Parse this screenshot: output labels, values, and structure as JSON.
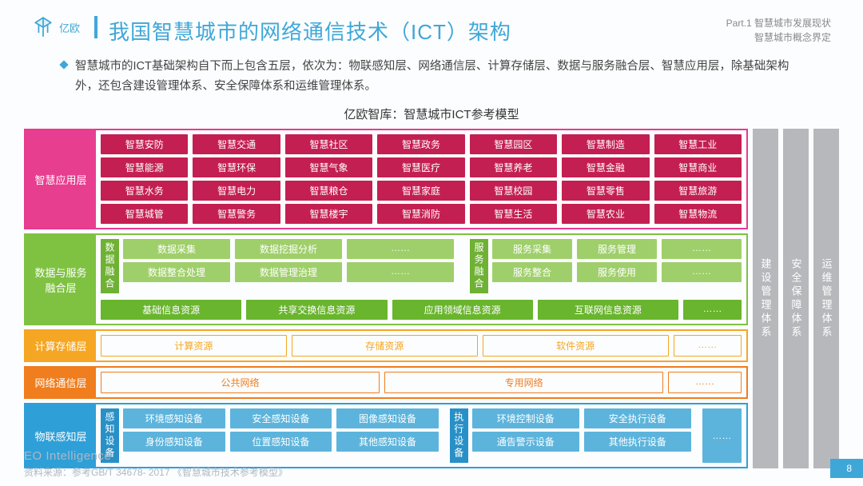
{
  "header": {
    "logo_text": "亿欧",
    "title": "我国智慧城市的网络通信技术（ICT）架构",
    "part_line1": "Part.1 智慧城市发展现状",
    "part_line2": "智慧城市概念界定"
  },
  "description": "智慧城市的ICT基础架构自下而上包含五层，依次为：物联感知层、网络通信层、计算存储层、数据与服务融合层、智慧应用层，除基础架构外，还包含建设管理体系、安全保障体系和运维管理体系。",
  "chart_title": "亿欧智库：智慧城市ICT参考模型",
  "colors": {
    "brand": "#3fa7d8",
    "L1_border": "#e83a8e",
    "L1_label_bg": "#e83e90",
    "L1_cell": "#c41f52",
    "L2_border": "#7fc242",
    "L2_label_bg": "#7fc242",
    "L2_vlabel": "#6fb134",
    "L2_top": "#9fcf6a",
    "L2_bottom": "#69b52e",
    "L3_border": "#f5a623",
    "L3_label_bg": "#f5a623",
    "L3_cell": "#f5a623",
    "L4_border": "#f07d1e",
    "L4_label_bg": "#f07d1e",
    "L4_cell": "#f07d1e",
    "L5_border": "#2f9fd8",
    "L5_label_bg": "#2f9fd8",
    "L5_vlabel": "#2890c7",
    "L5_cell": "#5cb4dc",
    "side_bg": "#b6b8bc"
  },
  "layer1": {
    "label": "智慧应用层",
    "label_width": 88,
    "rows": [
      [
        "智慧安防",
        "智慧交通",
        "智慧社区",
        "智慧政务",
        "智慧园区",
        "智慧制造",
        "智慧工业"
      ],
      [
        "智慧能源",
        "智慧环保",
        "智慧气象",
        "智慧医疗",
        "智慧养老",
        "智慧金融",
        "智慧商业"
      ],
      [
        "智慧水务",
        "智慧电力",
        "智慧粮仓",
        "智慧家庭",
        "智慧校园",
        "智慧零售",
        "智慧旅游"
      ],
      [
        "智慧城管",
        "智慧警务",
        "智慧楼宇",
        "智慧消防",
        "智慧生活",
        "智慧农业",
        "智慧物流"
      ]
    ]
  },
  "layer2": {
    "label": "数据与服务\n融合层",
    "label_width": 88,
    "data_block": {
      "vlabel": "数据融合",
      "rows": [
        [
          "数据采集",
          "数据挖掘分析",
          "……"
        ],
        [
          "数据整合处理",
          "数据管理治理",
          "……"
        ]
      ]
    },
    "service_block": {
      "vlabel": "服务融合",
      "rows": [
        [
          "服务采集",
          "服务管理",
          "……"
        ],
        [
          "服务整合",
          "服务使用",
          "……"
        ]
      ]
    },
    "bottom_row": [
      "基础信息资源",
      "共享交换信息资源",
      "应用领域信息资源",
      "互联网信息资源",
      "……"
    ]
  },
  "layer3": {
    "label": "计算存储层",
    "label_width": 88,
    "row": [
      "计算资源",
      "存储资源",
      "软件资源",
      "……"
    ]
  },
  "layer4": {
    "label": "网络通信层",
    "label_width": 88,
    "row": [
      "公共网络",
      "专用网络",
      "……"
    ]
  },
  "layer5": {
    "label": "物联感知层",
    "label_width": 88,
    "sense_block": {
      "vlabel": "感知设备",
      "rows": [
        [
          "环境感知设备",
          "安全感知设备",
          "图像感知设备"
        ],
        [
          "身份感知设备",
          "位置感知设备",
          "其他感知设备"
        ]
      ]
    },
    "exec_block": {
      "vlabel": "执行设备",
      "rows": [
        [
          "环境控制设备",
          "安全执行设备"
        ],
        [
          "通告警示设备",
          "其他执行设备"
        ]
      ]
    },
    "ellipsis": "……"
  },
  "side_cols": [
    "建设管理体系",
    "安全保障体系",
    "运维管理体系"
  ],
  "footer": {
    "brand": "EO Intelligence",
    "source": "资料来源：参考GB/T 34678- 2017 《智慧城市技术参考模型》"
  },
  "page": "8"
}
